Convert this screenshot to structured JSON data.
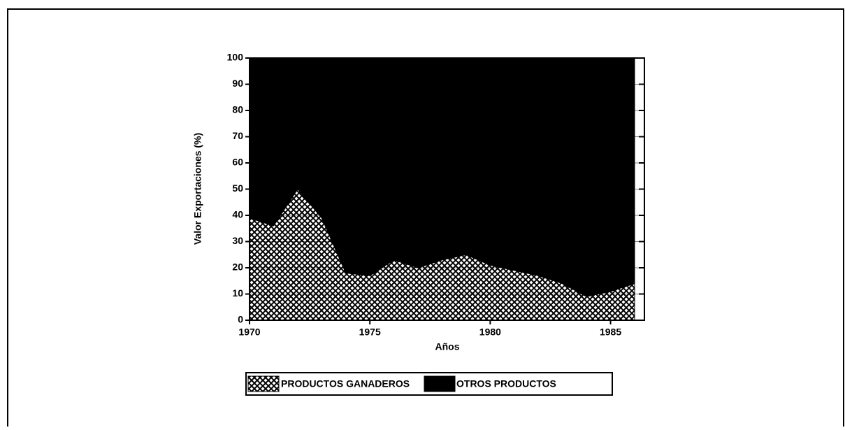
{
  "chart_data": {
    "type": "stacked_area",
    "x_label": "Años",
    "y_label": "Valor Exportaciones (%)",
    "x": [
      1970,
      1971,
      1972,
      1973,
      1974,
      1975,
      1976,
      1977,
      1978,
      1979,
      1980,
      1981,
      1982,
      1983,
      1984,
      1985,
      1986
    ],
    "series": [
      {
        "name": "PRODUCTOS GANADEROS",
        "color": "#000000",
        "hatch": true,
        "values": [
          39,
          36,
          50,
          39,
          18,
          17,
          23,
          20,
          23,
          25,
          21,
          19,
          17,
          14,
          9,
          11,
          14
        ]
      },
      {
        "name": "OTROS PRODUCTOS",
        "color": "#000000",
        "hatch": false,
        "values": [
          61,
          64,
          50,
          61,
          82,
          83,
          77,
          80,
          77,
          75,
          79,
          81,
          83,
          86,
          91,
          89,
          86
        ]
      }
    ],
    "xlim": [
      1970,
      1986
    ],
    "xticks": [
      1970,
      1975,
      1980,
      1985
    ],
    "ylim": [
      0,
      100
    ],
    "yticks": [
      0,
      10,
      20,
      30,
      40,
      50,
      60,
      70,
      80,
      90,
      100
    ],
    "grid": true,
    "legend": "bottom"
  }
}
